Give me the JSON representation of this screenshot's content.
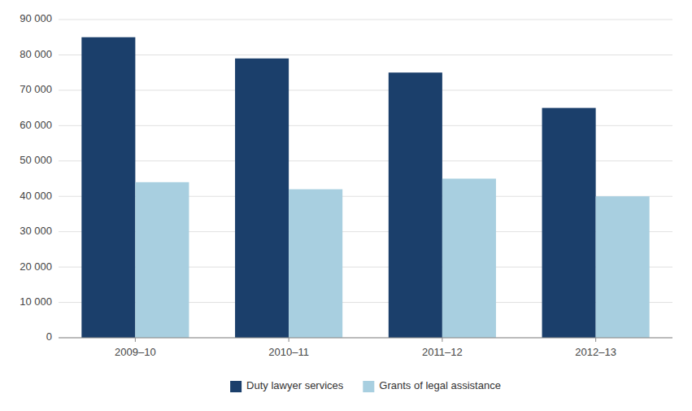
{
  "chart_data": {
    "type": "bar",
    "categories": [
      "2009–10",
      "2010–11",
      "2011–12",
      "2012–13"
    ],
    "series": [
      {
        "name": "Duty lawyer services",
        "color": "#1b3f6b",
        "values": [
          85000,
          79000,
          75000,
          65000
        ]
      },
      {
        "name": "Grants of legal assistance",
        "color": "#a8cfe0",
        "values": [
          44000,
          42000,
          45000,
          40000
        ]
      }
    ],
    "ylim": [
      0,
      90000
    ],
    "yticks": [
      0,
      {
        "value": 10000,
        "label": "10 000"
      },
      {
        "value": 20000,
        "label": "20 000"
      },
      {
        "value": 30000,
        "label": "30 000"
      },
      {
        "value": 40000,
        "label": "40 000"
      },
      {
        "value": 50000,
        "label": "50 000"
      },
      {
        "value": 60000,
        "label": "60 000"
      },
      {
        "value": 70000,
        "label": "70 000"
      },
      {
        "value": 80000,
        "label": "80 000"
      },
      {
        "value": 90000,
        "label": "90 000"
      }
    ],
    "grid": true,
    "legend": "bottom"
  }
}
